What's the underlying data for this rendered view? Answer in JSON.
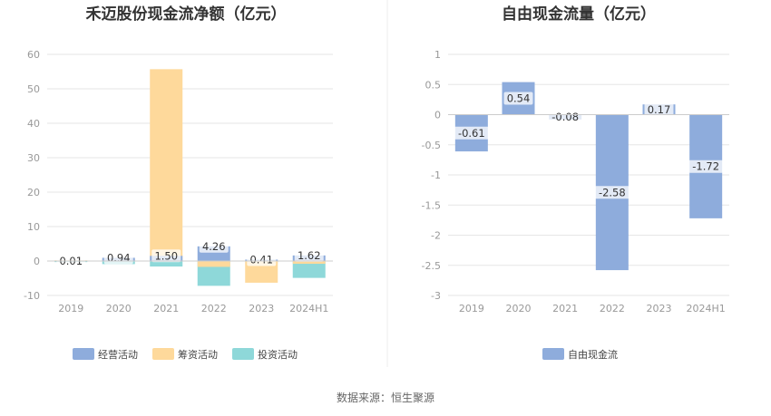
{
  "chart_data": [
    {
      "type": "bar",
      "title": "禾迈股份现金流净额（亿元）",
      "categories": [
        "2019",
        "2020",
        "2021",
        "2022",
        "2023",
        "2024H1"
      ],
      "y_ticks": [
        "60",
        "50",
        "40",
        "30",
        "20",
        "10",
        "0",
        "-10"
      ],
      "ylim": [
        -10,
        60
      ],
      "stacked": false,
      "grid": true,
      "legend_position": "bottom",
      "series": [
        {
          "name": "经营活动",
          "color": "#8eacdc",
          "values": [
            0.01,
            0.94,
            1.5,
            4.26,
            0.41,
            1.62
          ],
          "labels": [
            "0.01",
            "0.94",
            "1.50",
            "4.26",
            "0.41",
            "1.62"
          ]
        },
        {
          "name": "筹资活动",
          "color": "#fed99b",
          "values": [
            0.2,
            0.5,
            55.7,
            -1.7,
            -6.3,
            -0.8
          ]
        },
        {
          "name": "投资活动",
          "color": "#8ed8d9",
          "values": [
            -0.3,
            -0.9,
            -1.6,
            -7.2,
            -0.3,
            -4.9
          ]
        }
      ]
    },
    {
      "type": "bar",
      "title": "自由现金流量（亿元）",
      "categories": [
        "2019",
        "2020",
        "2021",
        "2022",
        "2023",
        "2024H1"
      ],
      "y_ticks": [
        "1",
        "0.5",
        "0",
        "-0.5",
        "-1",
        "-1.5",
        "-2",
        "-2.5",
        "-3"
      ],
      "ylim": [
        -3,
        1
      ],
      "grid": true,
      "legend_position": "bottom",
      "series": [
        {
          "name": "自由现金流",
          "color": "#8eacdc",
          "values": [
            -0.61,
            0.54,
            -0.08,
            -2.58,
            0.17,
            -1.72
          ],
          "labels": [
            "-0.61",
            "0.54",
            "-0.08",
            "-2.58",
            "0.17",
            "-1.72"
          ]
        }
      ]
    }
  ],
  "source": "数据来源：恒生聚源"
}
